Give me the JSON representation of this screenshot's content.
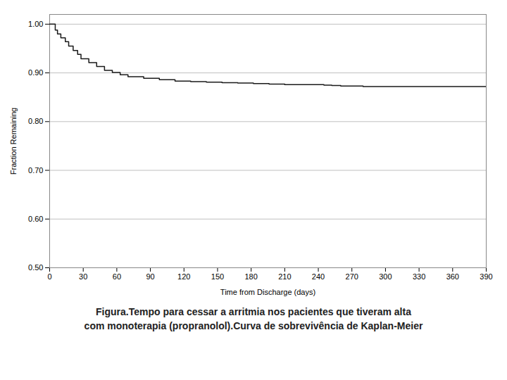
{
  "chart_data": {
    "type": "step",
    "caption": "Figura.Tempo para cessar a arritmia nos pacientes que tiveram alta\ncom monoterapia (propranolol).Curva de sobrevivência de Kaplan-Meier",
    "xlabel": "Time from Discharge (days)",
    "ylabel": "Fraction Remaining",
    "x": [
      0,
      3,
      5,
      7,
      10,
      14,
      17,
      21,
      25,
      28,
      35,
      42,
      49,
      56,
      63,
      70,
      84,
      98,
      112,
      126,
      140,
      154,
      168,
      182,
      196,
      210,
      245,
      252,
      260,
      280,
      300,
      330,
      365,
      390
    ],
    "values": [
      1.0,
      1.0,
      0.988,
      0.98,
      0.972,
      0.964,
      0.955,
      0.946,
      0.938,
      0.929,
      0.921,
      0.913,
      0.905,
      0.901,
      0.896,
      0.892,
      0.889,
      0.886,
      0.883,
      0.882,
      0.881,
      0.88,
      0.879,
      0.878,
      0.877,
      0.876,
      0.875,
      0.874,
      0.873,
      0.872,
      0.872,
      0.872,
      0.872,
      0.872
    ],
    "color": "#1a1a1a",
    "xlim": [
      0,
      390
    ],
    "ylim": [
      0.5,
      1.02
    ],
    "xticks": [
      0,
      30,
      60,
      90,
      120,
      150,
      180,
      210,
      240,
      270,
      300,
      330,
      360,
      390
    ],
    "yticks": [
      {
        "value": 0.5,
        "label": "0.50"
      },
      {
        "value": 0.6,
        "label": "0.60"
      },
      {
        "value": 0.7,
        "label": "0.70"
      },
      {
        "value": 0.8,
        "label": "0.80"
      },
      {
        "value": 0.9,
        "label": "0.90"
      },
      {
        "value": 1.0,
        "label": "1.00"
      }
    ],
    "grid": true
  }
}
